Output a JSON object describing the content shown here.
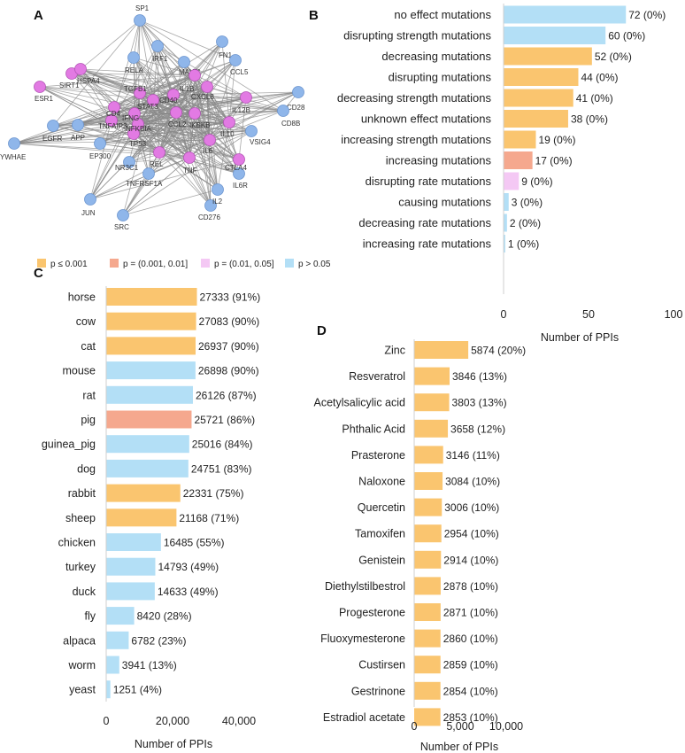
{
  "colors": {
    "p_le_0.001": "#FAC56F",
    "p_0.001_0.01": "#F5A88E",
    "p_0.01_0.05": "#F4C8F4",
    "p_gt_0.05": "#B3DFF6"
  },
  "legend": {
    "items": [
      {
        "key": "p_le_0.001",
        "label": "p ≤ 0.001"
      },
      {
        "key": "p_0.001_0.01",
        "label": "p = (0.001, 0.01]"
      },
      {
        "key": "p_0.01_0.05",
        "label": "p = (0.01, 0.05]"
      },
      {
        "key": "p_gt_0.05",
        "label": "p > 0.05"
      }
    ]
  },
  "network": {
    "letter": "A",
    "nodes": [
      {
        "id": "SP1",
        "type": "blue"
      },
      {
        "id": "RELA",
        "type": "blue"
      },
      {
        "id": "IRF1",
        "type": "blue"
      },
      {
        "id": "FN1",
        "type": "blue"
      },
      {
        "id": "CCL5",
        "type": "blue"
      },
      {
        "id": "CD28",
        "type": "blue"
      },
      {
        "id": "CD8B",
        "type": "blue"
      },
      {
        "id": "VSIG4",
        "type": "blue"
      },
      {
        "id": "IL6R",
        "type": "blue"
      },
      {
        "id": "CD276",
        "type": "blue"
      },
      {
        "id": "IL2",
        "type": "blue"
      },
      {
        "id": "SRC",
        "type": "blue"
      },
      {
        "id": "JUN",
        "type": "blue"
      },
      {
        "id": "YWHAE",
        "type": "blue"
      },
      {
        "id": "EGFR",
        "type": "blue"
      },
      {
        "id": "APP",
        "type": "blue"
      },
      {
        "id": "EP300",
        "type": "blue"
      },
      {
        "id": "NR3C1",
        "type": "blue"
      },
      {
        "id": "TNFRSF1A",
        "type": "blue"
      },
      {
        "id": "MALT1",
        "type": "blue"
      },
      {
        "id": "SIRT1",
        "type": "pink"
      },
      {
        "id": "HSPA4",
        "type": "pink"
      },
      {
        "id": "ESR1",
        "type": "pink"
      },
      {
        "id": "TGFB1",
        "type": "pink"
      },
      {
        "id": "STAT3",
        "type": "pink"
      },
      {
        "id": "IL1B",
        "type": "pink"
      },
      {
        "id": "CXCL8",
        "type": "pink"
      },
      {
        "id": "IL12B",
        "type": "pink"
      },
      {
        "id": "IL10",
        "type": "pink"
      },
      {
        "id": "CTLA4",
        "type": "pink"
      },
      {
        "id": "TNF",
        "type": "pink"
      },
      {
        "id": "IL6",
        "type": "pink"
      },
      {
        "id": "REL",
        "type": "pink"
      },
      {
        "id": "TP53",
        "type": "pink"
      },
      {
        "id": "NFKBIA",
        "type": "pink"
      },
      {
        "id": "TNFAIP3",
        "type": "pink"
      },
      {
        "id": "CD40",
        "type": "pink"
      },
      {
        "id": "IKBKB",
        "type": "pink"
      },
      {
        "id": "CCL2",
        "type": "pink"
      },
      {
        "id": "IFNG",
        "type": "pink"
      },
      {
        "id": "CD4",
        "type": "pink"
      }
    ]
  },
  "chart_data": [
    {
      "panel": "B",
      "type": "bar",
      "orientation": "horizontal",
      "categories": [
        "no effect mutations",
        "disrupting strength mutations",
        "decreasing mutations",
        "disrupting mutations",
        "decreasing strength mutations",
        "unknown effect mutations",
        "increasing strength mutations",
        "increasing mutations",
        "disrupting rate mutations",
        "causing mutations",
        "decreasing rate mutations",
        "increasing rate mutations"
      ],
      "values": [
        72,
        60,
        52,
        44,
        41,
        38,
        19,
        17,
        9,
        3,
        2,
        1
      ],
      "labels": [
        "72 (0%)",
        "60 (0%)",
        "52 (0%)",
        "44 (0%)",
        "41 (0%)",
        "38 (0%)",
        "19 (0%)",
        "17 (0%)",
        "9 (0%)",
        "3 (0%)",
        "2 (0%)",
        "1 (0%)"
      ],
      "color_keys": [
        "p_gt_0.05",
        "p_gt_0.05",
        "p_le_0.001",
        "p_le_0.001",
        "p_le_0.001",
        "p_le_0.001",
        "p_le_0.001",
        "p_0.001_0.01",
        "p_0.01_0.05",
        "p_gt_0.05",
        "p_gt_0.05",
        "p_gt_0.05"
      ],
      "xlim": [
        0,
        100
      ],
      "ticks": [
        0,
        50,
        100
      ],
      "tick_labels": [
        "0",
        "50",
        "100"
      ],
      "xlabel": "Number of PPIs"
    },
    {
      "panel": "C",
      "type": "bar",
      "orientation": "horizontal",
      "categories": [
        "horse",
        "cow",
        "cat",
        "mouse",
        "rat",
        "pig",
        "guinea_pig",
        "dog",
        "rabbit",
        "sheep",
        "chicken",
        "turkey",
        "duck",
        "fly",
        "alpaca",
        "worm",
        "yeast"
      ],
      "values": [
        27333,
        27083,
        26937,
        26898,
        26126,
        25721,
        25016,
        24751,
        22331,
        21168,
        16485,
        14793,
        14633,
        8420,
        6782,
        3941,
        1251
      ],
      "labels": [
        "27333 (91%)",
        "27083 (90%)",
        "26937 (90%)",
        "26898 (90%)",
        "26126 (87%)",
        "25721 (86%)",
        "25016 (84%)",
        "24751 (83%)",
        "22331 (75%)",
        "21168 (71%)",
        "16485 (55%)",
        "14793 (49%)",
        "14633 (49%)",
        "8420 (28%)",
        "6782 (23%)",
        "3941 (13%)",
        "1251 (4%)"
      ],
      "color_keys": [
        "p_le_0.001",
        "p_le_0.001",
        "p_le_0.001",
        "p_gt_0.05",
        "p_gt_0.05",
        "p_0.001_0.01",
        "p_gt_0.05",
        "p_gt_0.05",
        "p_le_0.001",
        "p_le_0.001",
        "p_gt_0.05",
        "p_gt_0.05",
        "p_gt_0.05",
        "p_gt_0.05",
        "p_gt_0.05",
        "p_gt_0.05",
        "p_gt_0.05"
      ],
      "xlim": [
        0,
        40000
      ],
      "ticks": [
        0,
        20000,
        40000
      ],
      "tick_labels": [
        "0",
        "20,000",
        "40,000"
      ],
      "xlabel": "Number of PPIs"
    },
    {
      "panel": "D",
      "type": "bar",
      "orientation": "horizontal",
      "categories": [
        "Zinc",
        "Resveratrol",
        "Acetylsalicylic acid",
        "Phthalic Acid",
        "Prasterone",
        "Naloxone",
        "Quercetin",
        "Tamoxifen",
        "Genistein",
        "Diethylstilbestrol",
        "Progesterone",
        "Fluoxymesterone",
        "Custirsen",
        "Gestrinone",
        "Estradiol acetate"
      ],
      "values": [
        5874,
        3846,
        3803,
        3658,
        3146,
        3084,
        3006,
        2954,
        2914,
        2878,
        2871,
        2860,
        2859,
        2854,
        2853
      ],
      "labels": [
        "5874 (20%)",
        "3846 (13%)",
        "3803 (13%)",
        "3658 (12%)",
        "3146 (11%)",
        "3084 (10%)",
        "3006 (10%)",
        "2954 (10%)",
        "2914 (10%)",
        "2878 (10%)",
        "2871 (10%)",
        "2860 (10%)",
        "2859 (10%)",
        "2854 (10%)",
        "2853 (10%)"
      ],
      "color_keys": [
        "p_le_0.001",
        "p_le_0.001",
        "p_le_0.001",
        "p_le_0.001",
        "p_le_0.001",
        "p_le_0.001",
        "p_le_0.001",
        "p_le_0.001",
        "p_le_0.001",
        "p_le_0.001",
        "p_le_0.001",
        "p_le_0.001",
        "p_le_0.001",
        "p_le_0.001",
        "p_le_0.001"
      ],
      "xlim": [
        0,
        10000
      ],
      "ticks": [
        0,
        5000,
        10000
      ],
      "tick_labels": [
        "0",
        "5,000",
        "10,000"
      ],
      "xlabel": "Number of PPIs"
    }
  ]
}
